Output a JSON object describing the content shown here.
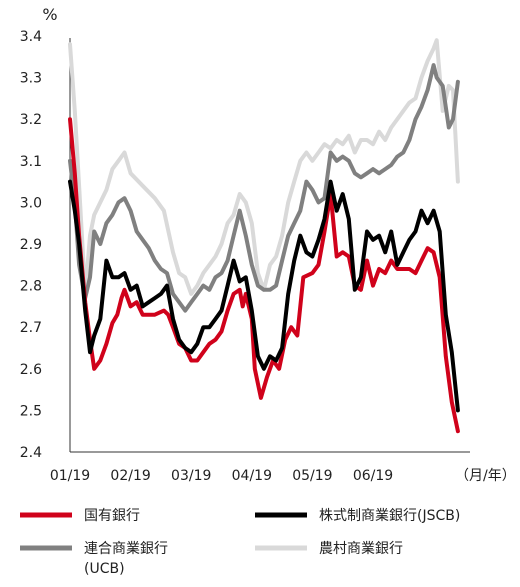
{
  "chart_data": {
    "type": "line",
    "y_unit": "%",
    "x_unit": "（月/年）",
    "ylim": [
      2.4,
      3.4
    ],
    "y_ticks": [
      "2.4",
      "2.5",
      "2.6",
      "2.7",
      "2.8",
      "2.9",
      "3.0",
      "3.1",
      "3.2",
      "3.3",
      "3.4"
    ],
    "x_ticks": [
      "01/19",
      "02/19",
      "03/19",
      "04/19",
      "05/19",
      "06/19"
    ],
    "x_range_months": [
      0,
      6.6
    ],
    "grid": false,
    "legend_position": "bottom",
    "series": [
      {
        "name": "国有銀行",
        "color": "#d0021b",
        "width": 4,
        "points": [
          [
            0.0,
            3.2
          ],
          [
            0.08,
            3.07
          ],
          [
            0.15,
            2.92
          ],
          [
            0.25,
            2.76
          ],
          [
            0.33,
            2.67
          ],
          [
            0.4,
            2.6
          ],
          [
            0.5,
            2.62
          ],
          [
            0.6,
            2.66
          ],
          [
            0.7,
            2.71
          ],
          [
            0.78,
            2.73
          ],
          [
            0.85,
            2.77
          ],
          [
            0.9,
            2.79
          ],
          [
            1.0,
            2.75
          ],
          [
            1.1,
            2.76
          ],
          [
            1.2,
            2.73
          ],
          [
            1.4,
            2.73
          ],
          [
            1.55,
            2.74
          ],
          [
            1.62,
            2.73
          ],
          [
            1.7,
            2.7
          ],
          [
            1.8,
            2.66
          ],
          [
            1.9,
            2.65
          ],
          [
            2.0,
            2.62
          ],
          [
            2.1,
            2.62
          ],
          [
            2.2,
            2.64
          ],
          [
            2.3,
            2.66
          ],
          [
            2.4,
            2.67
          ],
          [
            2.5,
            2.69
          ],
          [
            2.6,
            2.74
          ],
          [
            2.7,
            2.78
          ],
          [
            2.8,
            2.79
          ],
          [
            2.85,
            2.75
          ],
          [
            2.9,
            2.78
          ],
          [
            3.0,
            2.72
          ],
          [
            3.05,
            2.6
          ],
          [
            3.15,
            2.53
          ],
          [
            3.25,
            2.58
          ],
          [
            3.35,
            2.62
          ],
          [
            3.45,
            2.6
          ],
          [
            3.55,
            2.67
          ],
          [
            3.65,
            2.7
          ],
          [
            3.75,
            2.68
          ],
          [
            3.85,
            2.82
          ],
          [
            4.0,
            2.83
          ],
          [
            4.1,
            2.85
          ],
          [
            4.2,
            2.93
          ],
          [
            4.3,
            3.02
          ],
          [
            4.4,
            2.87
          ],
          [
            4.5,
            2.88
          ],
          [
            4.6,
            2.87
          ],
          [
            4.7,
            2.8
          ],
          [
            4.8,
            2.79
          ],
          [
            4.9,
            2.86
          ],
          [
            5.0,
            2.8
          ],
          [
            5.1,
            2.84
          ],
          [
            5.2,
            2.83
          ],
          [
            5.3,
            2.86
          ],
          [
            5.4,
            2.84
          ],
          [
            5.5,
            2.84
          ],
          [
            5.6,
            2.84
          ],
          [
            5.7,
            2.83
          ],
          [
            5.8,
            2.86
          ],
          [
            5.9,
            2.89
          ],
          [
            6.0,
            2.88
          ],
          [
            6.1,
            2.82
          ],
          [
            6.2,
            2.63
          ],
          [
            6.3,
            2.52
          ],
          [
            6.4,
            2.45
          ]
        ]
      },
      {
        "name": "株式制商業銀行(JSCB)",
        "color": "#000000",
        "width": 4,
        "points": [
          [
            0.0,
            3.05
          ],
          [
            0.08,
            2.98
          ],
          [
            0.15,
            2.9
          ],
          [
            0.25,
            2.74
          ],
          [
            0.33,
            2.64
          ],
          [
            0.4,
            2.68
          ],
          [
            0.5,
            2.72
          ],
          [
            0.6,
            2.86
          ],
          [
            0.7,
            2.82
          ],
          [
            0.8,
            2.82
          ],
          [
            0.9,
            2.83
          ],
          [
            1.0,
            2.79
          ],
          [
            1.1,
            2.8
          ],
          [
            1.2,
            2.75
          ],
          [
            1.3,
            2.76
          ],
          [
            1.4,
            2.77
          ],
          [
            1.5,
            2.78
          ],
          [
            1.6,
            2.8
          ],
          [
            1.7,
            2.72
          ],
          [
            1.8,
            2.67
          ],
          [
            1.9,
            2.65
          ],
          [
            2.0,
            2.64
          ],
          [
            2.1,
            2.66
          ],
          [
            2.2,
            2.7
          ],
          [
            2.3,
            2.7
          ],
          [
            2.4,
            2.72
          ],
          [
            2.5,
            2.74
          ],
          [
            2.6,
            2.8
          ],
          [
            2.7,
            2.86
          ],
          [
            2.8,
            2.81
          ],
          [
            2.9,
            2.82
          ],
          [
            3.0,
            2.74
          ],
          [
            3.1,
            2.63
          ],
          [
            3.2,
            2.6
          ],
          [
            3.3,
            2.63
          ],
          [
            3.4,
            2.62
          ],
          [
            3.5,
            2.65
          ],
          [
            3.6,
            2.78
          ],
          [
            3.7,
            2.86
          ],
          [
            3.8,
            2.92
          ],
          [
            3.9,
            2.88
          ],
          [
            4.0,
            2.87
          ],
          [
            4.1,
            2.91
          ],
          [
            4.2,
            2.96
          ],
          [
            4.3,
            3.05
          ],
          [
            4.4,
            2.98
          ],
          [
            4.5,
            3.02
          ],
          [
            4.6,
            2.96
          ],
          [
            4.7,
            2.79
          ],
          [
            4.8,
            2.82
          ],
          [
            4.9,
            2.93
          ],
          [
            5.0,
            2.91
          ],
          [
            5.1,
            2.92
          ],
          [
            5.2,
            2.88
          ],
          [
            5.3,
            2.93
          ],
          [
            5.4,
            2.85
          ],
          [
            5.5,
            2.88
          ],
          [
            5.6,
            2.91
          ],
          [
            5.7,
            2.93
          ],
          [
            5.8,
            2.98
          ],
          [
            5.9,
            2.95
          ],
          [
            6.0,
            2.98
          ],
          [
            6.1,
            2.93
          ],
          [
            6.2,
            2.73
          ],
          [
            6.3,
            2.64
          ],
          [
            6.4,
            2.5
          ]
        ]
      },
      {
        "name": "連合商業銀行\n(UCB)",
        "color": "#808080",
        "width": 4,
        "points": [
          [
            0.0,
            3.1
          ],
          [
            0.08,
            3.0
          ],
          [
            0.15,
            2.85
          ],
          [
            0.25,
            2.77
          ],
          [
            0.33,
            2.82
          ],
          [
            0.4,
            2.93
          ],
          [
            0.5,
            2.9
          ],
          [
            0.6,
            2.95
          ],
          [
            0.7,
            2.97
          ],
          [
            0.8,
            3.0
          ],
          [
            0.9,
            3.01
          ],
          [
            1.0,
            2.98
          ],
          [
            1.1,
            2.93
          ],
          [
            1.2,
            2.91
          ],
          [
            1.3,
            2.89
          ],
          [
            1.4,
            2.86
          ],
          [
            1.5,
            2.84
          ],
          [
            1.6,
            2.83
          ],
          [
            1.7,
            2.78
          ],
          [
            1.8,
            2.76
          ],
          [
            1.9,
            2.74
          ],
          [
            2.0,
            2.76
          ],
          [
            2.1,
            2.78
          ],
          [
            2.2,
            2.8
          ],
          [
            2.3,
            2.79
          ],
          [
            2.4,
            2.82
          ],
          [
            2.5,
            2.83
          ],
          [
            2.6,
            2.86
          ],
          [
            2.7,
            2.92
          ],
          [
            2.8,
            2.98
          ],
          [
            2.9,
            2.92
          ],
          [
            3.0,
            2.85
          ],
          [
            3.1,
            2.8
          ],
          [
            3.2,
            2.79
          ],
          [
            3.3,
            2.79
          ],
          [
            3.4,
            2.8
          ],
          [
            3.5,
            2.86
          ],
          [
            3.6,
            2.92
          ],
          [
            3.7,
            2.95
          ],
          [
            3.8,
            2.98
          ],
          [
            3.9,
            3.05
          ],
          [
            4.0,
            3.03
          ],
          [
            4.1,
            3.0
          ],
          [
            4.2,
            3.01
          ],
          [
            4.3,
            3.12
          ],
          [
            4.4,
            3.1
          ],
          [
            4.5,
            3.11
          ],
          [
            4.6,
            3.1
          ],
          [
            4.7,
            3.07
          ],
          [
            4.8,
            3.06
          ],
          [
            4.9,
            3.07
          ],
          [
            5.0,
            3.08
          ],
          [
            5.1,
            3.07
          ],
          [
            5.2,
            3.08
          ],
          [
            5.3,
            3.09
          ],
          [
            5.4,
            3.11
          ],
          [
            5.5,
            3.12
          ],
          [
            5.6,
            3.15
          ],
          [
            5.7,
            3.2
          ],
          [
            5.8,
            3.23
          ],
          [
            5.9,
            3.27
          ],
          [
            6.0,
            3.33
          ],
          [
            6.05,
            3.3
          ],
          [
            6.15,
            3.28
          ],
          [
            6.25,
            3.18
          ],
          [
            6.32,
            3.2
          ],
          [
            6.4,
            3.29
          ]
        ]
      },
      {
        "name": "農村商業銀行",
        "color": "#d9d9d9",
        "width": 4,
        "points": [
          [
            0.0,
            3.38
          ],
          [
            0.08,
            3.22
          ],
          [
            0.15,
            3.04
          ],
          [
            0.25,
            2.78
          ],
          [
            0.33,
            2.92
          ],
          [
            0.4,
            2.97
          ],
          [
            0.5,
            3.0
          ],
          [
            0.6,
            3.03
          ],
          [
            0.7,
            3.08
          ],
          [
            0.8,
            3.1
          ],
          [
            0.9,
            3.12
          ],
          [
            1.0,
            3.07
          ],
          [
            1.2,
            3.04
          ],
          [
            1.4,
            3.01
          ],
          [
            1.55,
            2.98
          ],
          [
            1.7,
            2.88
          ],
          [
            1.8,
            2.83
          ],
          [
            1.9,
            2.82
          ],
          [
            2.0,
            2.78
          ],
          [
            2.1,
            2.8
          ],
          [
            2.2,
            2.83
          ],
          [
            2.3,
            2.85
          ],
          [
            2.4,
            2.87
          ],
          [
            2.5,
            2.9
          ],
          [
            2.6,
            2.95
          ],
          [
            2.7,
            2.97
          ],
          [
            2.8,
            3.02
          ],
          [
            2.9,
            3.0
          ],
          [
            3.0,
            2.95
          ],
          [
            3.1,
            2.83
          ],
          [
            3.2,
            2.79
          ],
          [
            3.3,
            2.85
          ],
          [
            3.4,
            2.87
          ],
          [
            3.5,
            2.92
          ],
          [
            3.6,
            3.0
          ],
          [
            3.7,
            3.05
          ],
          [
            3.8,
            3.1
          ],
          [
            3.9,
            3.12
          ],
          [
            4.0,
            3.1
          ],
          [
            4.1,
            3.12
          ],
          [
            4.2,
            3.14
          ],
          [
            4.3,
            3.13
          ],
          [
            4.4,
            3.15
          ],
          [
            4.5,
            3.14
          ],
          [
            4.6,
            3.16
          ],
          [
            4.7,
            3.12
          ],
          [
            4.8,
            3.15
          ],
          [
            4.9,
            3.15
          ],
          [
            5.0,
            3.14
          ],
          [
            5.1,
            3.17
          ],
          [
            5.2,
            3.15
          ],
          [
            5.3,
            3.18
          ],
          [
            5.4,
            3.2
          ],
          [
            5.5,
            3.22
          ],
          [
            5.6,
            3.24
          ],
          [
            5.7,
            3.25
          ],
          [
            5.8,
            3.3
          ],
          [
            5.9,
            3.34
          ],
          [
            6.0,
            3.37
          ],
          [
            6.05,
            3.39
          ],
          [
            6.15,
            3.22
          ],
          [
            6.25,
            3.28
          ],
          [
            6.32,
            3.27
          ],
          [
            6.4,
            3.05
          ]
        ]
      }
    ]
  }
}
